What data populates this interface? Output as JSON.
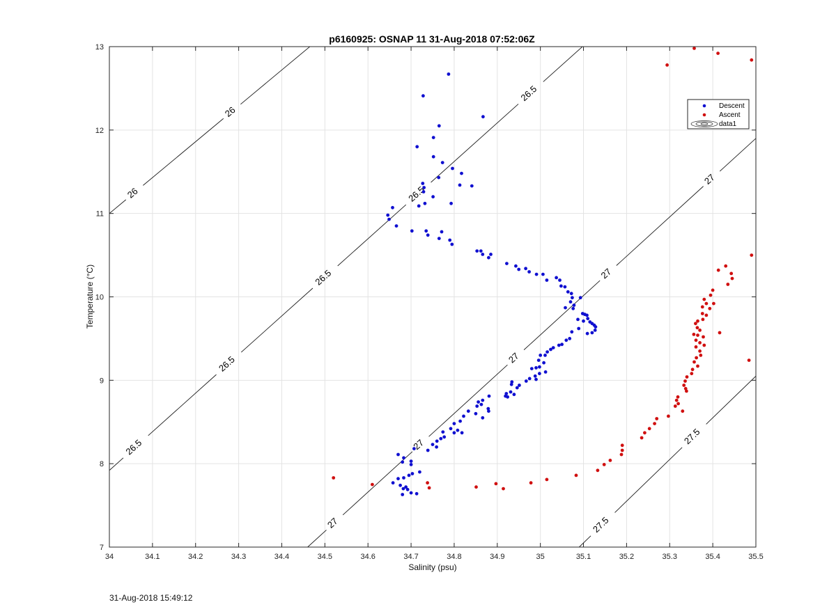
{
  "chart_data": {
    "type": "scatter",
    "title": "p6160925: OSNAP 11 31-Aug-2018 07:52:06Z",
    "xlabel": "Salinity (psu)",
    "ylabel": "Temperature (°C)",
    "xlim": [
      34,
      35.5
    ],
    "ylim": [
      7,
      13
    ],
    "xticks": [
      "34",
      "34.1",
      "34.2",
      "34.3",
      "34.4",
      "34.5",
      "34.6",
      "34.7",
      "34.8",
      "34.9",
      "35",
      "35.1",
      "35.2",
      "35.3",
      "35.4",
      "35.5"
    ],
    "yticks": [
      "7",
      "8",
      "9",
      "10",
      "11",
      "12",
      "13"
    ],
    "grid": true,
    "legend_position": "top-right",
    "legend": [
      {
        "label": "Descent",
        "color": "#1010d0",
        "marker": "dot"
      },
      {
        "label": "Ascent",
        "color": "#d01010",
        "marker": "dot"
      },
      {
        "label": "data1",
        "marker": "contour"
      }
    ],
    "contours": [
      {
        "label": "26",
        "points": [
          [
            34.0,
            11.0
          ],
          [
            34.5,
            13.15
          ]
        ],
        "label_positions": [
          [
            34.06,
            11.24
          ],
          [
            34.29,
            12.19
          ]
        ]
      },
      {
        "label": "26.5",
        "points": [
          [
            34.0,
            7.92
          ],
          [
            35.13,
            13.15
          ]
        ],
        "label_positions": [
          [
            34.06,
            8.21
          ],
          [
            34.26,
            9.3
          ],
          [
            34.49,
            10.3
          ],
          [
            34.71,
            11.28
          ],
          [
            35.01,
            12.26
          ]
        ]
      },
      {
        "label": "27",
        "points": [
          [
            34.46,
            7.0
          ],
          [
            35.5,
            11.9
          ]
        ],
        "label_positions": [
          [
            34.52,
            7.31
          ],
          [
            34.7,
            8.36
          ],
          [
            34.91,
            9.46
          ],
          [
            35.13,
            10.44
          ],
          [
            35.4,
            11.4
          ]
        ]
      },
      {
        "label": "27.5",
        "points": [
          [
            35.09,
            7.0
          ],
          [
            35.5,
            9.05
          ]
        ],
        "label_positions": [
          [
            35.14,
            7.3
          ],
          [
            35.35,
            8.37
          ]
        ]
      }
    ],
    "series": [
      {
        "name": "Descent",
        "color": "#1010d0",
        "points": [
          [
            34.787,
            12.67
          ],
          [
            34.728,
            12.41
          ],
          [
            34.867,
            12.16
          ],
          [
            34.765,
            12.05
          ],
          [
            34.752,
            11.91
          ],
          [
            34.714,
            11.8
          ],
          [
            34.752,
            11.68
          ],
          [
            34.773,
            11.61
          ],
          [
            34.796,
            11.54
          ],
          [
            34.817,
            11.48
          ],
          [
            34.764,
            11.43
          ],
          [
            34.727,
            11.36
          ],
          [
            34.73,
            11.31
          ],
          [
            34.813,
            11.34
          ],
          [
            34.841,
            11.33
          ],
          [
            34.729,
            11.26
          ],
          [
            34.751,
            11.2
          ],
          [
            34.732,
            11.12
          ],
          [
            34.718,
            11.09
          ],
          [
            34.793,
            11.12
          ],
          [
            34.657,
            11.07
          ],
          [
            34.646,
            10.98
          ],
          [
            34.649,
            10.93
          ],
          [
            34.666,
            10.85
          ],
          [
            34.702,
            10.79
          ],
          [
            34.735,
            10.79
          ],
          [
            34.739,
            10.74
          ],
          [
            34.771,
            10.78
          ],
          [
            34.765,
            10.7
          ],
          [
            34.79,
            10.68
          ],
          [
            34.795,
            10.63
          ],
          [
            34.853,
            10.55
          ],
          [
            34.862,
            10.55
          ],
          [
            34.866,
            10.51
          ],
          [
            34.885,
            10.51
          ],
          [
            34.88,
            10.47
          ],
          [
            34.922,
            10.4
          ],
          [
            34.943,
            10.37
          ],
          [
            34.95,
            10.33
          ],
          [
            34.966,
            10.34
          ],
          [
            34.974,
            10.3
          ],
          [
            34.991,
            10.27
          ],
          [
            35.006,
            10.27
          ],
          [
            35.015,
            10.2
          ],
          [
            35.037,
            10.23
          ],
          [
            35.045,
            10.2
          ],
          [
            35.048,
            10.13
          ],
          [
            35.057,
            10.12
          ],
          [
            35.064,
            10.06
          ],
          [
            35.072,
            10.04
          ],
          [
            35.074,
            9.99
          ],
          [
            35.07,
            9.94
          ],
          [
            35.078,
            9.9
          ],
          [
            35.076,
            9.86
          ],
          [
            35.058,
            9.87
          ],
          [
            35.093,
            9.99
          ],
          [
            35.098,
            9.8
          ],
          [
            35.103,
            9.79
          ],
          [
            35.108,
            9.78
          ],
          [
            35.087,
            9.73
          ],
          [
            35.11,
            9.74
          ],
          [
            35.1,
            9.71
          ],
          [
            35.115,
            9.7
          ],
          [
            35.12,
            9.68
          ],
          [
            35.125,
            9.66
          ],
          [
            35.128,
            9.64
          ],
          [
            35.127,
            9.6
          ],
          [
            35.12,
            9.57
          ],
          [
            35.109,
            9.56
          ],
          [
            35.089,
            9.62
          ],
          [
            35.073,
            9.58
          ],
          [
            35.068,
            9.5
          ],
          [
            35.06,
            9.48
          ],
          [
            35.05,
            9.43
          ],
          [
            35.043,
            9.42
          ],
          [
            35.03,
            9.39
          ],
          [
            35.024,
            9.37
          ],
          [
            35.016,
            9.34
          ],
          [
            35.011,
            9.3
          ],
          [
            35.0,
            9.3
          ],
          [
            34.996,
            9.24
          ],
          [
            35.008,
            9.21
          ],
          [
            34.998,
            9.16
          ],
          [
            34.99,
            9.15
          ],
          [
            34.98,
            9.14
          ],
          [
            35.012,
            9.1
          ],
          [
            34.998,
            9.08
          ],
          [
            34.988,
            9.05
          ],
          [
            34.99,
            9.01
          ],
          [
            34.975,
            9.02
          ],
          [
            34.967,
            8.99
          ],
          [
            34.934,
            8.98
          ],
          [
            34.933,
            8.95
          ],
          [
            34.951,
            8.94
          ],
          [
            34.946,
            8.91
          ],
          [
            34.931,
            8.86
          ],
          [
            34.921,
            8.84
          ],
          [
            34.939,
            8.83
          ],
          [
            34.919,
            8.81
          ],
          [
            34.924,
            8.8
          ],
          [
            34.881,
            8.81
          ],
          [
            34.866,
            8.76
          ],
          [
            34.856,
            8.74
          ],
          [
            34.863,
            8.71
          ],
          [
            34.853,
            8.69
          ],
          [
            34.879,
            8.66
          ],
          [
            34.88,
            8.63
          ],
          [
            34.85,
            8.6
          ],
          [
            34.833,
            8.63
          ],
          [
            34.822,
            8.57
          ],
          [
            34.866,
            8.55
          ],
          [
            34.814,
            8.51
          ],
          [
            34.8,
            8.48
          ],
          [
            34.792,
            8.42
          ],
          [
            34.808,
            8.4
          ],
          [
            34.818,
            8.37
          ],
          [
            34.8,
            8.37
          ],
          [
            34.774,
            8.38
          ],
          [
            34.777,
            8.32
          ],
          [
            34.769,
            8.3
          ],
          [
            34.76,
            8.27
          ],
          [
            34.75,
            8.23
          ],
          [
            34.759,
            8.2
          ],
          [
            34.739,
            8.16
          ],
          [
            34.707,
            8.18
          ],
          [
            34.67,
            8.11
          ],
          [
            34.683,
            8.07
          ],
          [
            34.7,
            8.03
          ],
          [
            34.68,
            8.02
          ],
          [
            34.7,
            7.99
          ],
          [
            34.72,
            7.9
          ],
          [
            34.703,
            7.88
          ],
          [
            34.695,
            7.86
          ],
          [
            34.683,
            7.83
          ],
          [
            34.67,
            7.82
          ],
          [
            34.658,
            7.77
          ],
          [
            34.675,
            7.74
          ],
          [
            34.688,
            7.72
          ],
          [
            34.682,
            7.7
          ],
          [
            34.692,
            7.69
          ],
          [
            34.7,
            7.65
          ],
          [
            34.713,
            7.64
          ],
          [
            34.68,
            7.63
          ]
        ]
      },
      {
        "name": "Ascent",
        "color": "#d01010",
        "points": [
          [
            35.49,
            10.5
          ],
          [
            35.43,
            10.37
          ],
          [
            35.413,
            10.32
          ],
          [
            35.443,
            10.28
          ],
          [
            35.445,
            10.22
          ],
          [
            35.435,
            10.15
          ],
          [
            35.4,
            10.08
          ],
          [
            35.395,
            10.02
          ],
          [
            35.38,
            9.97
          ],
          [
            35.385,
            9.92
          ],
          [
            35.402,
            9.92
          ],
          [
            35.376,
            9.88
          ],
          [
            35.393,
            9.86
          ],
          [
            35.376,
            9.8
          ],
          [
            35.385,
            9.78
          ],
          [
            35.377,
            9.73
          ],
          [
            35.365,
            9.71
          ],
          [
            35.36,
            9.68
          ],
          [
            35.364,
            9.63
          ],
          [
            35.37,
            9.6
          ],
          [
            35.416,
            9.57
          ],
          [
            35.365,
            9.54
          ],
          [
            35.356,
            9.55
          ],
          [
            35.378,
            9.52
          ],
          [
            35.361,
            9.48
          ],
          [
            35.37,
            9.45
          ],
          [
            35.38,
            9.42
          ],
          [
            35.361,
            9.4
          ],
          [
            35.37,
            9.35
          ],
          [
            35.372,
            9.3
          ],
          [
            35.362,
            9.27
          ],
          [
            35.357,
            9.22
          ],
          [
            35.484,
            9.24
          ],
          [
            35.365,
            9.17
          ],
          [
            35.353,
            9.13
          ],
          [
            35.351,
            9.08
          ],
          [
            35.34,
            9.04
          ],
          [
            35.336,
            8.99
          ],
          [
            35.333,
            8.94
          ],
          [
            35.337,
            8.9
          ],
          [
            35.339,
            8.87
          ],
          [
            35.319,
            8.8
          ],
          [
            35.316,
            8.76
          ],
          [
            35.32,
            8.72
          ],
          [
            35.313,
            8.69
          ],
          [
            35.33,
            8.63
          ],
          [
            35.297,
            8.57
          ],
          [
            35.27,
            8.54
          ],
          [
            35.265,
            8.48
          ],
          [
            35.253,
            8.42
          ],
          [
            35.242,
            8.37
          ],
          [
            35.235,
            8.31
          ],
          [
            35.19,
            8.22
          ],
          [
            35.19,
            8.16
          ],
          [
            35.188,
            8.11
          ],
          [
            35.162,
            8.04
          ],
          [
            35.148,
            7.99
          ],
          [
            35.133,
            7.92
          ],
          [
            35.083,
            7.86
          ],
          [
            35.015,
            7.81
          ],
          [
            34.978,
            7.77
          ],
          [
            34.897,
            7.76
          ],
          [
            34.851,
            7.72
          ],
          [
            34.914,
            7.7
          ],
          [
            34.52,
            7.83
          ],
          [
            34.61,
            7.75
          ],
          [
            34.738,
            7.77
          ],
          [
            34.742,
            7.71
          ],
          [
            35.294,
            12.78
          ],
          [
            35.357,
            12.98
          ],
          [
            35.412,
            12.92
          ],
          [
            35.49,
            12.84
          ]
        ]
      }
    ]
  },
  "footer": {
    "timestamp": "31-Aug-2018 15:49:12"
  }
}
